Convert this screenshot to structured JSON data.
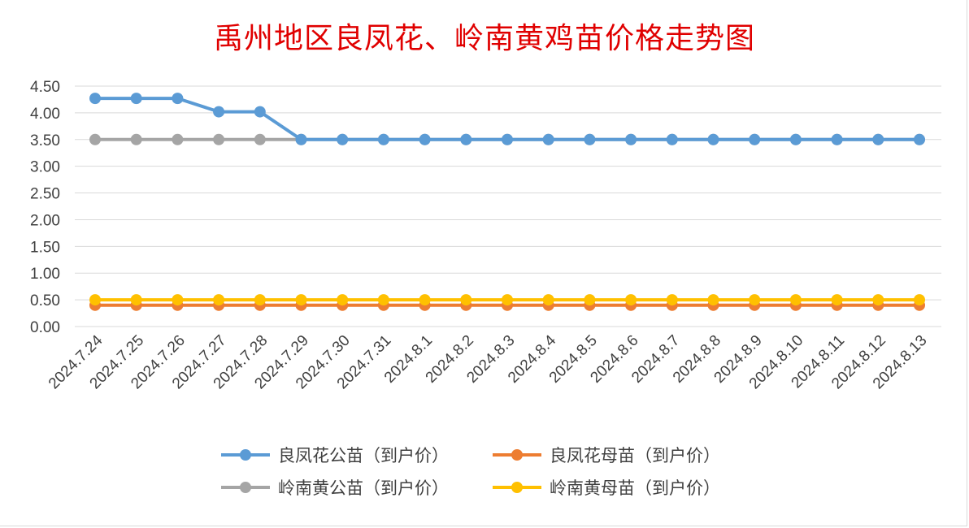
{
  "chart_data": {
    "type": "line",
    "title": "禹州地区良凤花、岭南黄鸡苗价格走势图",
    "xlabel": "",
    "ylabel": "",
    "categories": [
      "2024.7.24",
      "2024.7.25",
      "2024.7.26",
      "2024.7.27",
      "2024.7.28",
      "2024.7.29",
      "2024.7.30",
      "2024.7.31",
      "2024.8.1",
      "2024.8.2",
      "2024.8.3",
      "2024.8.4",
      "2024.8.5",
      "2024.8.6",
      "2024.8.7",
      "2024.8.8",
      "2024.8.9",
      "2024.8.10",
      "2024.8.11",
      "2024.8.12",
      "2024.8.13"
    ],
    "ylim": [
      0,
      4.5
    ],
    "yticks": [
      "0.00",
      "0.50",
      "1.00",
      "1.50",
      "2.00",
      "2.50",
      "3.00",
      "3.50",
      "4.00",
      "4.50"
    ],
    "grid": true,
    "legend_position": "bottom",
    "series": [
      {
        "name": "良凤花公苗（到户价）",
        "color": "#5b9bd5",
        "values": [
          4.27,
          4.27,
          4.27,
          4.02,
          4.02,
          3.5,
          3.5,
          3.5,
          3.5,
          3.5,
          3.5,
          3.5,
          3.5,
          3.5,
          3.5,
          3.5,
          3.5,
          3.5,
          3.5,
          3.5,
          3.5
        ]
      },
      {
        "name": "良凤花母苗（到户价）",
        "color": "#ed7d31",
        "values": [
          0.4,
          0.4,
          0.4,
          0.4,
          0.4,
          0.4,
          0.4,
          0.4,
          0.4,
          0.4,
          0.4,
          0.4,
          0.4,
          0.4,
          0.4,
          0.4,
          0.4,
          0.4,
          0.4,
          0.4,
          0.4
        ]
      },
      {
        "name": "岭南黄公苗（到户价）",
        "color": "#a5a5a5",
        "values": [
          3.5,
          3.5,
          3.5,
          3.5,
          3.5,
          3.5,
          3.5,
          3.5,
          3.5,
          3.5,
          3.5,
          3.5,
          3.5,
          3.5,
          3.5,
          3.5,
          3.5,
          3.5,
          3.5,
          3.5,
          3.5
        ]
      },
      {
        "name": "岭南黄母苗（到户价）",
        "color": "#ffc000",
        "values": [
          0.5,
          0.5,
          0.5,
          0.5,
          0.5,
          0.5,
          0.5,
          0.5,
          0.5,
          0.5,
          0.5,
          0.5,
          0.5,
          0.5,
          0.5,
          0.5,
          0.5,
          0.5,
          0.5,
          0.5,
          0.5
        ]
      }
    ]
  }
}
